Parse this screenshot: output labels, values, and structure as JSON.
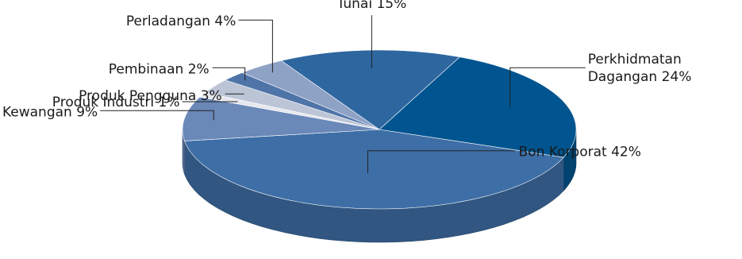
{
  "chart_data": {
    "type": "pie",
    "style": "3d",
    "title": "",
    "slices": [
      {
        "label": "Perkhidmatan Dagangan",
        "label_lines": [
          "Perkhidmatan",
          "Dagangan 24%"
        ],
        "value": 24,
        "color": "#00548f"
      },
      {
        "label": "Bon Korporat",
        "label_lines": [
          "Bon Korporat 42%"
        ],
        "value": 42,
        "color": "#3e6ea6"
      },
      {
        "label": "Kewangan",
        "label_lines": [
          "Kewangan 9%"
        ],
        "value": 9,
        "color": "#6a88b8"
      },
      {
        "label": "Produk Industri",
        "label_lines": [
          "Produk Industri 1%"
        ],
        "value": 1,
        "color": "#e6e8ee"
      },
      {
        "label": "Produk Pengguna",
        "label_lines": [
          "Produk Pengguna 3%"
        ],
        "value": 3,
        "color": "#bcc5d6"
      },
      {
        "label": "Pembinaan",
        "label_lines": [
          "Pembinaan 2%"
        ],
        "value": 2,
        "color": "#4f74a8"
      },
      {
        "label": "Perladangan",
        "label_lines": [
          "Perladangan 4%"
        ],
        "value": 4,
        "color": "#8ea2c6"
      },
      {
        "label": "Tunai",
        "label_lines": [
          "Tunai 15%"
        ],
        "value": 15,
        "color": "#2e66a0"
      }
    ]
  }
}
